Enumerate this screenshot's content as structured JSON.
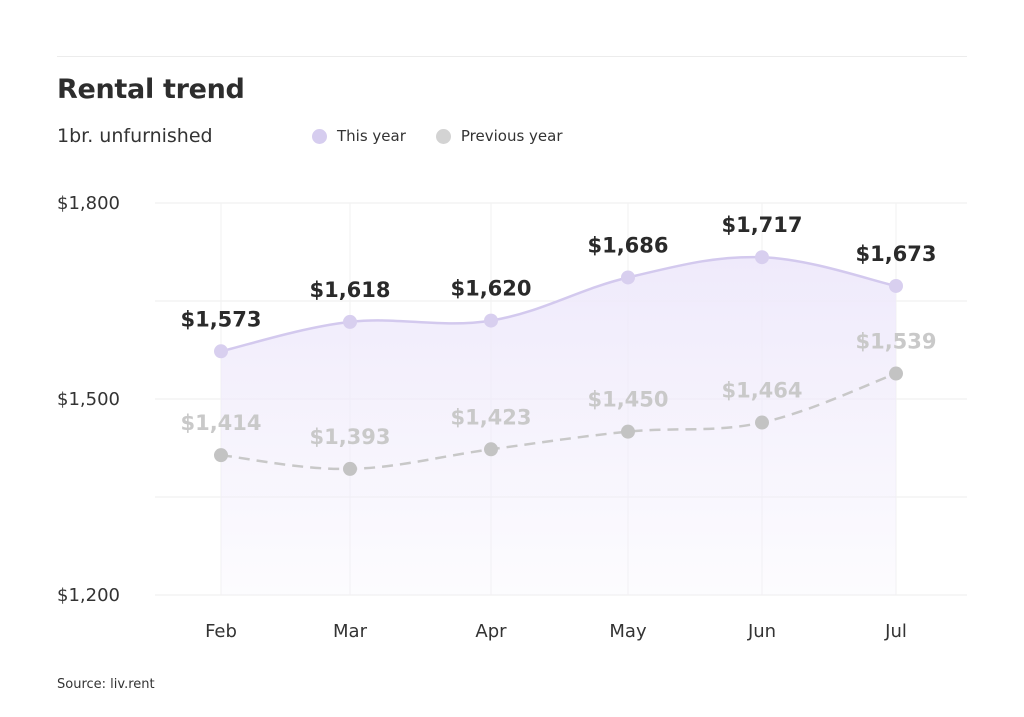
{
  "header": {
    "title": "Rental trend",
    "subtitle": "1br. unfurnished"
  },
  "legend": {
    "items": [
      {
        "label": "This year",
        "color": "#d6cdef"
      },
      {
        "label": "Previous year",
        "color": "#d3d3d3"
      }
    ]
  },
  "footer": {
    "source": "Source: liv.rent"
  },
  "colors": {
    "current_line": "#d3c9ee",
    "current_marker": "#d8cfef",
    "area_fill": "#efeafb",
    "previous_line": "#c8c8c8",
    "previous_marker": "#c3c3c3",
    "grid": "#eeeeee"
  },
  "chart_data": {
    "type": "line",
    "title": "Rental trend",
    "subtitle": "1br. unfurnished",
    "categories": [
      "Feb",
      "Mar",
      "Apr",
      "May",
      "Jun",
      "Jul"
    ],
    "series": [
      {
        "name": "This year",
        "values": [
          1573,
          1618,
          1620,
          1686,
          1717,
          1673
        ],
        "labels": [
          "$1,573",
          "$1,618",
          "$1,620",
          "$1,686",
          "$1,717",
          "$1,673"
        ],
        "style": "solid-with-area"
      },
      {
        "name": "Previous year",
        "values": [
          1414,
          1393,
          1423,
          1450,
          1464,
          1539
        ],
        "labels": [
          "$1,414",
          "$1,393",
          "$1,423",
          "$1,450",
          "$1,464",
          "$1,539"
        ],
        "style": "dashed"
      }
    ],
    "ylim": [
      1200,
      1800
    ],
    "yticks": [
      1200,
      1500,
      1800
    ],
    "ytick_labels": [
      "$1,200",
      "$1,500",
      "$1,800"
    ],
    "gridlines": [
      1200,
      1350,
      1500,
      1650,
      1800
    ],
    "xlabel": "",
    "ylabel": "",
    "grid": true,
    "legend_position": "top"
  }
}
